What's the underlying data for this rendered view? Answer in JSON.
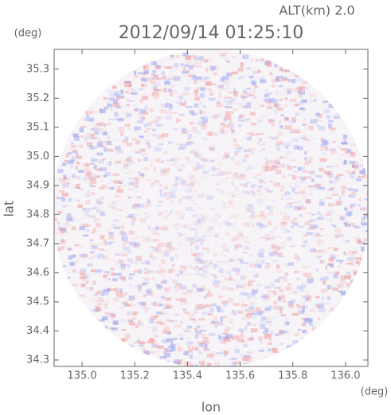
{
  "chart_data": {
    "type": "radar-map",
    "title": "2012/09/14 01:25:10",
    "subtitle": "ALT(km) 2.0",
    "x_label": "lon",
    "y_label": "lat",
    "x_unit": "(deg)",
    "y_unit": "(deg)",
    "xlim": [
      134.894,
      136.085
    ],
    "ylim": [
      34.278,
      35.368
    ],
    "xticks": [
      {
        "value": 135.0,
        "label": "135.0"
      },
      135.2,
      135.4,
      135.6,
      135.8,
      {
        "value": 136.0,
        "label": "136.0"
      }
    ],
    "yticks": [
      34.3,
      34.4,
      34.5,
      34.6,
      34.7,
      34.8,
      34.9,
      {
        "value": 35.0,
        "label": "35.0"
      },
      35.1,
      35.2,
      35.3
    ]
  }
}
